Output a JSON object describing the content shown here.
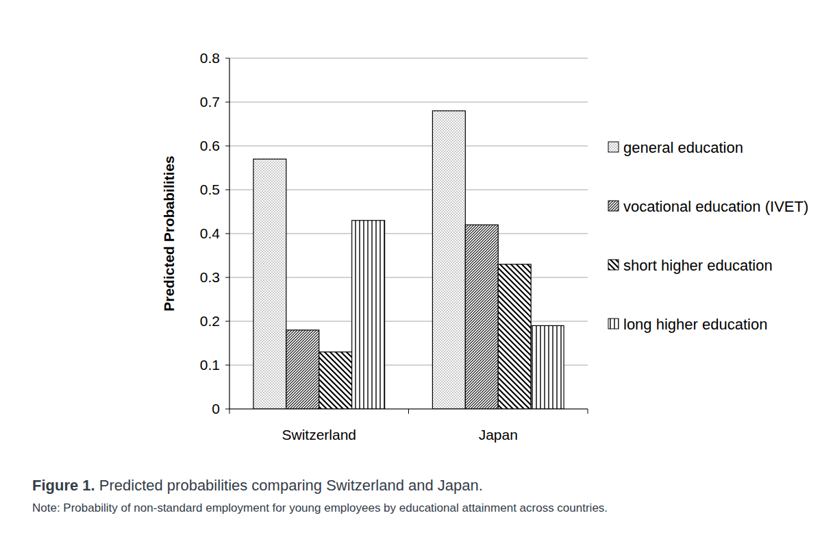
{
  "chart_data": {
    "type": "bar",
    "caption_label": "Figure 1.",
    "title": "Predicted probabilities comparing Switzerland and Japan.",
    "note": "Note: Probability of non-standard employment for young employees by educational attainment across countries.",
    "y_label": "Predicted Probabilities",
    "categories": [
      "Switzerland",
      "Japan"
    ],
    "series": [
      {
        "name": "general education",
        "color": "#000000",
        "values": [
          0.57,
          0.68
        ]
      },
      {
        "name": "vocational education (IVET)",
        "color": "#000000",
        "values": [
          0.18,
          0.42
        ]
      },
      {
        "name": "short higher education",
        "color": "#000000",
        "values": [
          0.13,
          0.33
        ]
      },
      {
        "name": "long higher education",
        "color": "#000000",
        "values": [
          0.43,
          0.19
        ]
      }
    ],
    "ylim": [
      0,
      0.8
    ],
    "yticks": [
      0,
      0.1,
      0.2,
      0.3,
      0.4,
      0.5,
      0.6,
      0.7,
      0.8
    ],
    "grid": true,
    "legend": "right"
  }
}
